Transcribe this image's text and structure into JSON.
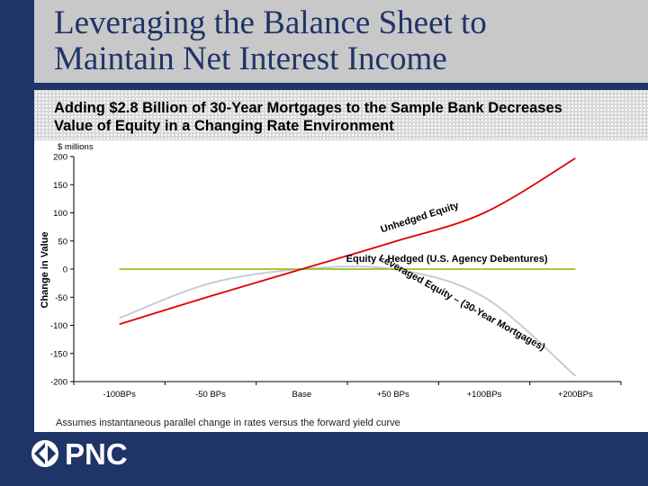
{
  "title": {
    "line1": "Leveraging the Balance Sheet to",
    "line2": "Maintain Net Interest Income"
  },
  "subtitle": {
    "line1": "Adding $2.8 Billion of 30-Year Mortgages to the Sample Bank Decreases",
    "line2": "Value of Equity in a Changing Rate Environment"
  },
  "footnote": "Assumes instantaneous parallel change in rates versus the forward yield curve",
  "logo": {
    "text": "PNC"
  },
  "colors": {
    "background": "#1f3468",
    "unhedged": "#e00000",
    "hedged": "#99c020",
    "leveraged": "#c8ccd8"
  },
  "chart_data": {
    "type": "line",
    "unit_label": "$ millions",
    "ylabel": "Change in Value",
    "xlabel": "",
    "categories": [
      "-100BPs",
      "-50 BPs",
      "Base",
      "+50 BPs",
      "+100BPs",
      "+200BPs"
    ],
    "ylim": [
      -200,
      200
    ],
    "yticks": [
      200,
      150,
      100,
      50,
      0,
      -50,
      -100,
      -150,
      -200
    ],
    "grid": false,
    "series": [
      {
        "name": "Unhedged Equity",
        "color": "#e00000",
        "values": [
          -98,
          -48,
          0,
          48,
          100,
          197
        ]
      },
      {
        "name": "Equity – Hedged (U.S. Agency Debentures)",
        "color": "#99c020",
        "values": [
          0,
          0,
          0,
          0,
          0,
          0
        ]
      },
      {
        "name": "Leveraged Equity – (30-Year Mortgages)",
        "color": "#c8ccd8",
        "values": [
          -87,
          -25,
          0,
          0,
          -50,
          -190
        ]
      }
    ]
  }
}
